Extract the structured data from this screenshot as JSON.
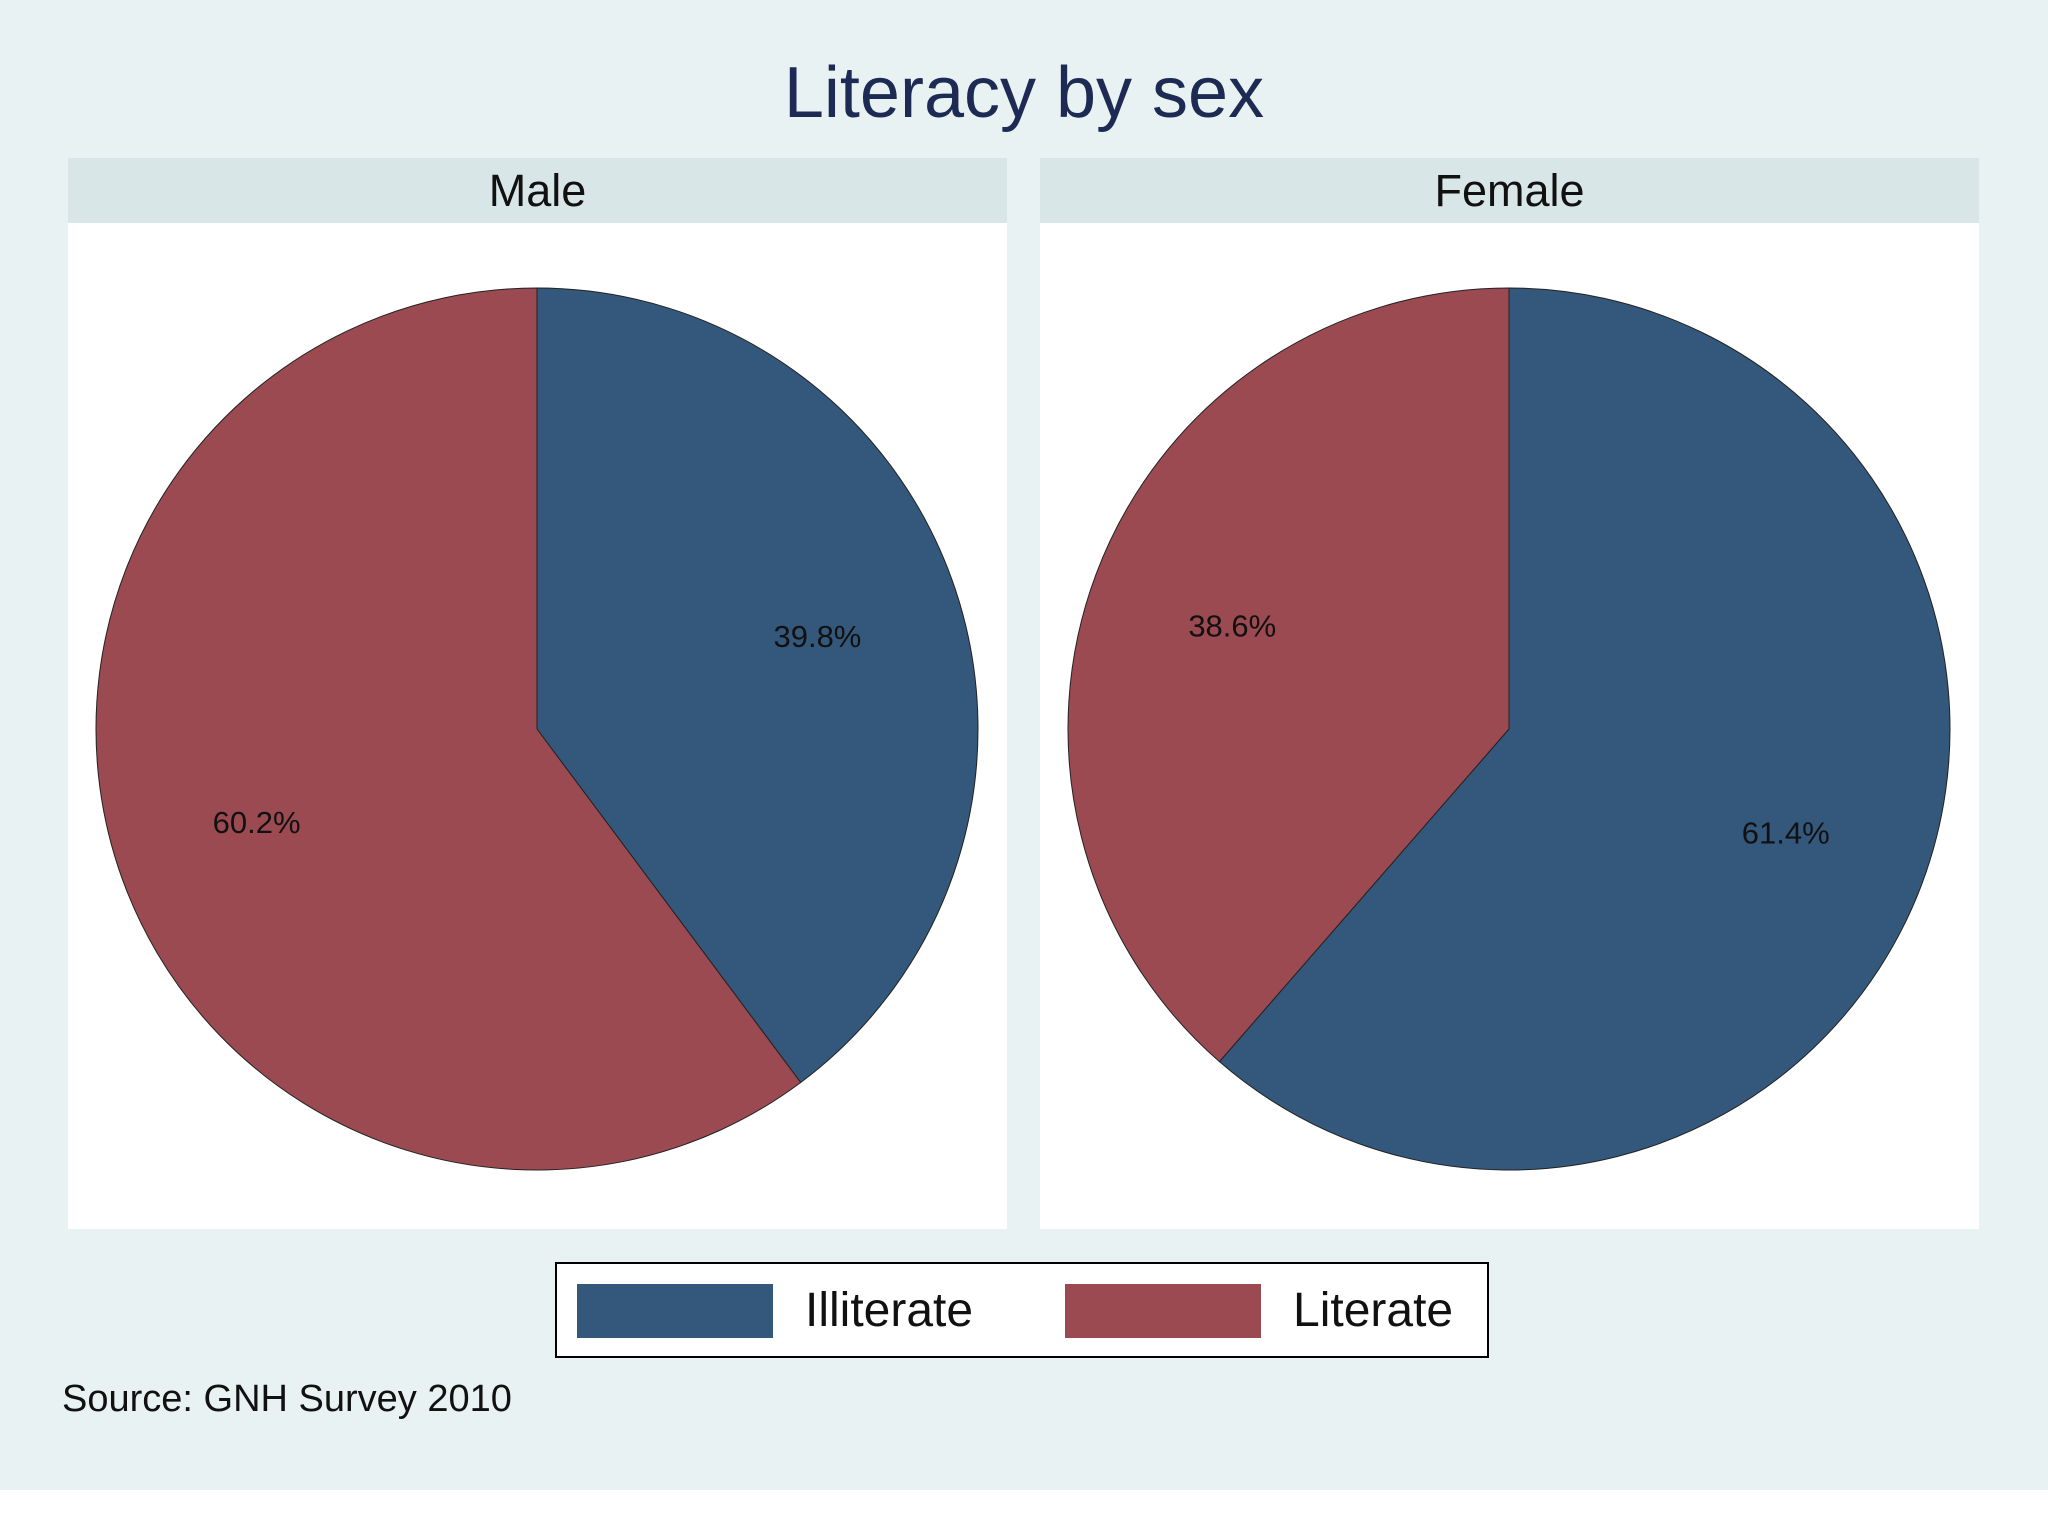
{
  "chart_data": {
    "type": "pie",
    "title": "Literacy by sex",
    "categories": [
      "Illiterate",
      "Literate"
    ],
    "colors": {
      "Illiterate": "#34587c",
      "Literate": "#9c4a52"
    },
    "panels": [
      {
        "name": "Male",
        "values": [
          39.8,
          60.2
        ],
        "labels": [
          "39.8%",
          "60.2%"
        ]
      },
      {
        "name": "Female",
        "values": [
          61.4,
          38.6
        ],
        "labels": [
          "61.4%",
          "38.6%"
        ]
      }
    ],
    "legend": {
      "placement": "bottom",
      "items": [
        "Illiterate",
        "Literate"
      ]
    },
    "note": "Source: GNH Survey 2010"
  }
}
